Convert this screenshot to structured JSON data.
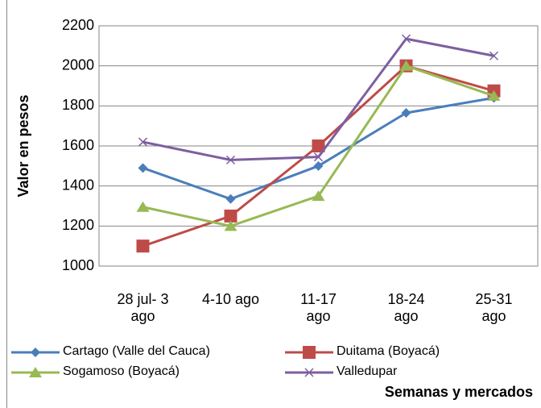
{
  "chart_data": {
    "type": "line",
    "y_label": "Valor en pesos",
    "x_label": "Semanas y mercados",
    "categories": [
      "28 jul- 3 ago",
      "4-10 ago",
      "11-17 ago",
      "18-24 ago",
      "25-31 ago"
    ],
    "series": [
      {
        "name": "Cartago (Valle del Cauca)",
        "color": "#4a7ebb",
        "marker": "diamond",
        "values": [
          1490,
          1335,
          1500,
          1765,
          1840
        ]
      },
      {
        "name": "Duitama (Boyacá)",
        "color": "#be4b48",
        "marker": "square",
        "values": [
          1100,
          1250,
          1600,
          2000,
          1875
        ]
      },
      {
        "name": "Sogamoso (Boyacá)",
        "color": "#98b954",
        "marker": "triangle",
        "values": [
          1295,
          1200,
          1350,
          2000,
          1850
        ]
      },
      {
        "name": "Valledupar",
        "color": "#7d5fa0",
        "marker": "x",
        "values": [
          1620,
          1530,
          1545,
          2135,
          2050
        ]
      }
    ],
    "ylim": [
      1000,
      2200
    ],
    "yticks": [
      1000,
      1200,
      1400,
      1600,
      1800,
      2000,
      2200
    ],
    "grid": true
  }
}
